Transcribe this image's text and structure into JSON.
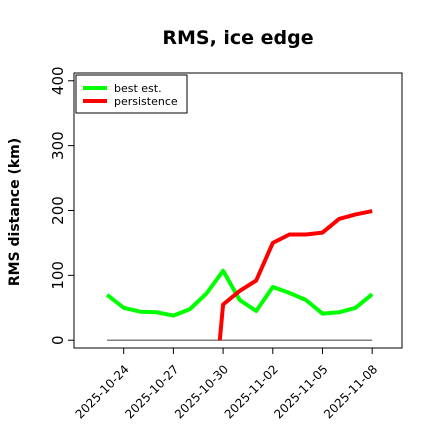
{
  "chart_data": {
    "type": "line",
    "title": "RMS, ice edge",
    "xlabel": "",
    "ylabel": "RMS distance (km)",
    "x_ticks": [
      "2025-10-24",
      "2025-10-27",
      "2025-10-30",
      "2025-11-02",
      "2025-11-05",
      "2025-11-08"
    ],
    "x_tick_values": [
      2,
      5,
      8,
      11,
      14,
      17
    ],
    "xlim": [
      -1,
      18.8
    ],
    "y_ticks": [
      0,
      100,
      200,
      300,
      400
    ],
    "ylim": [
      -12,
      412
    ],
    "grid": false,
    "legend_position": "top-left",
    "series": [
      {
        "name": "best est.",
        "color": "#00ff00",
        "x": [
          1,
          2,
          3,
          4,
          5,
          6,
          7,
          8,
          9,
          10,
          11,
          12,
          13,
          14,
          15,
          16,
          17
        ],
        "y": [
          70,
          50,
          44,
          43,
          38,
          48,
          72,
          107,
          62,
          45,
          82,
          73,
          62,
          41,
          43,
          50,
          71
        ]
      },
      {
        "name": "persistence",
        "color": "#ff0000",
        "x": [
          7.8,
          8,
          9,
          10,
          11,
          12,
          13,
          14,
          15,
          16,
          17
        ],
        "y": [
          0,
          55,
          76,
          92,
          150,
          163,
          163,
          166,
          187,
          194,
          199
        ]
      },
      {
        "name": "",
        "color": "#808080",
        "x": [
          1,
          17
        ],
        "y": [
          0,
          0
        ]
      }
    ]
  }
}
